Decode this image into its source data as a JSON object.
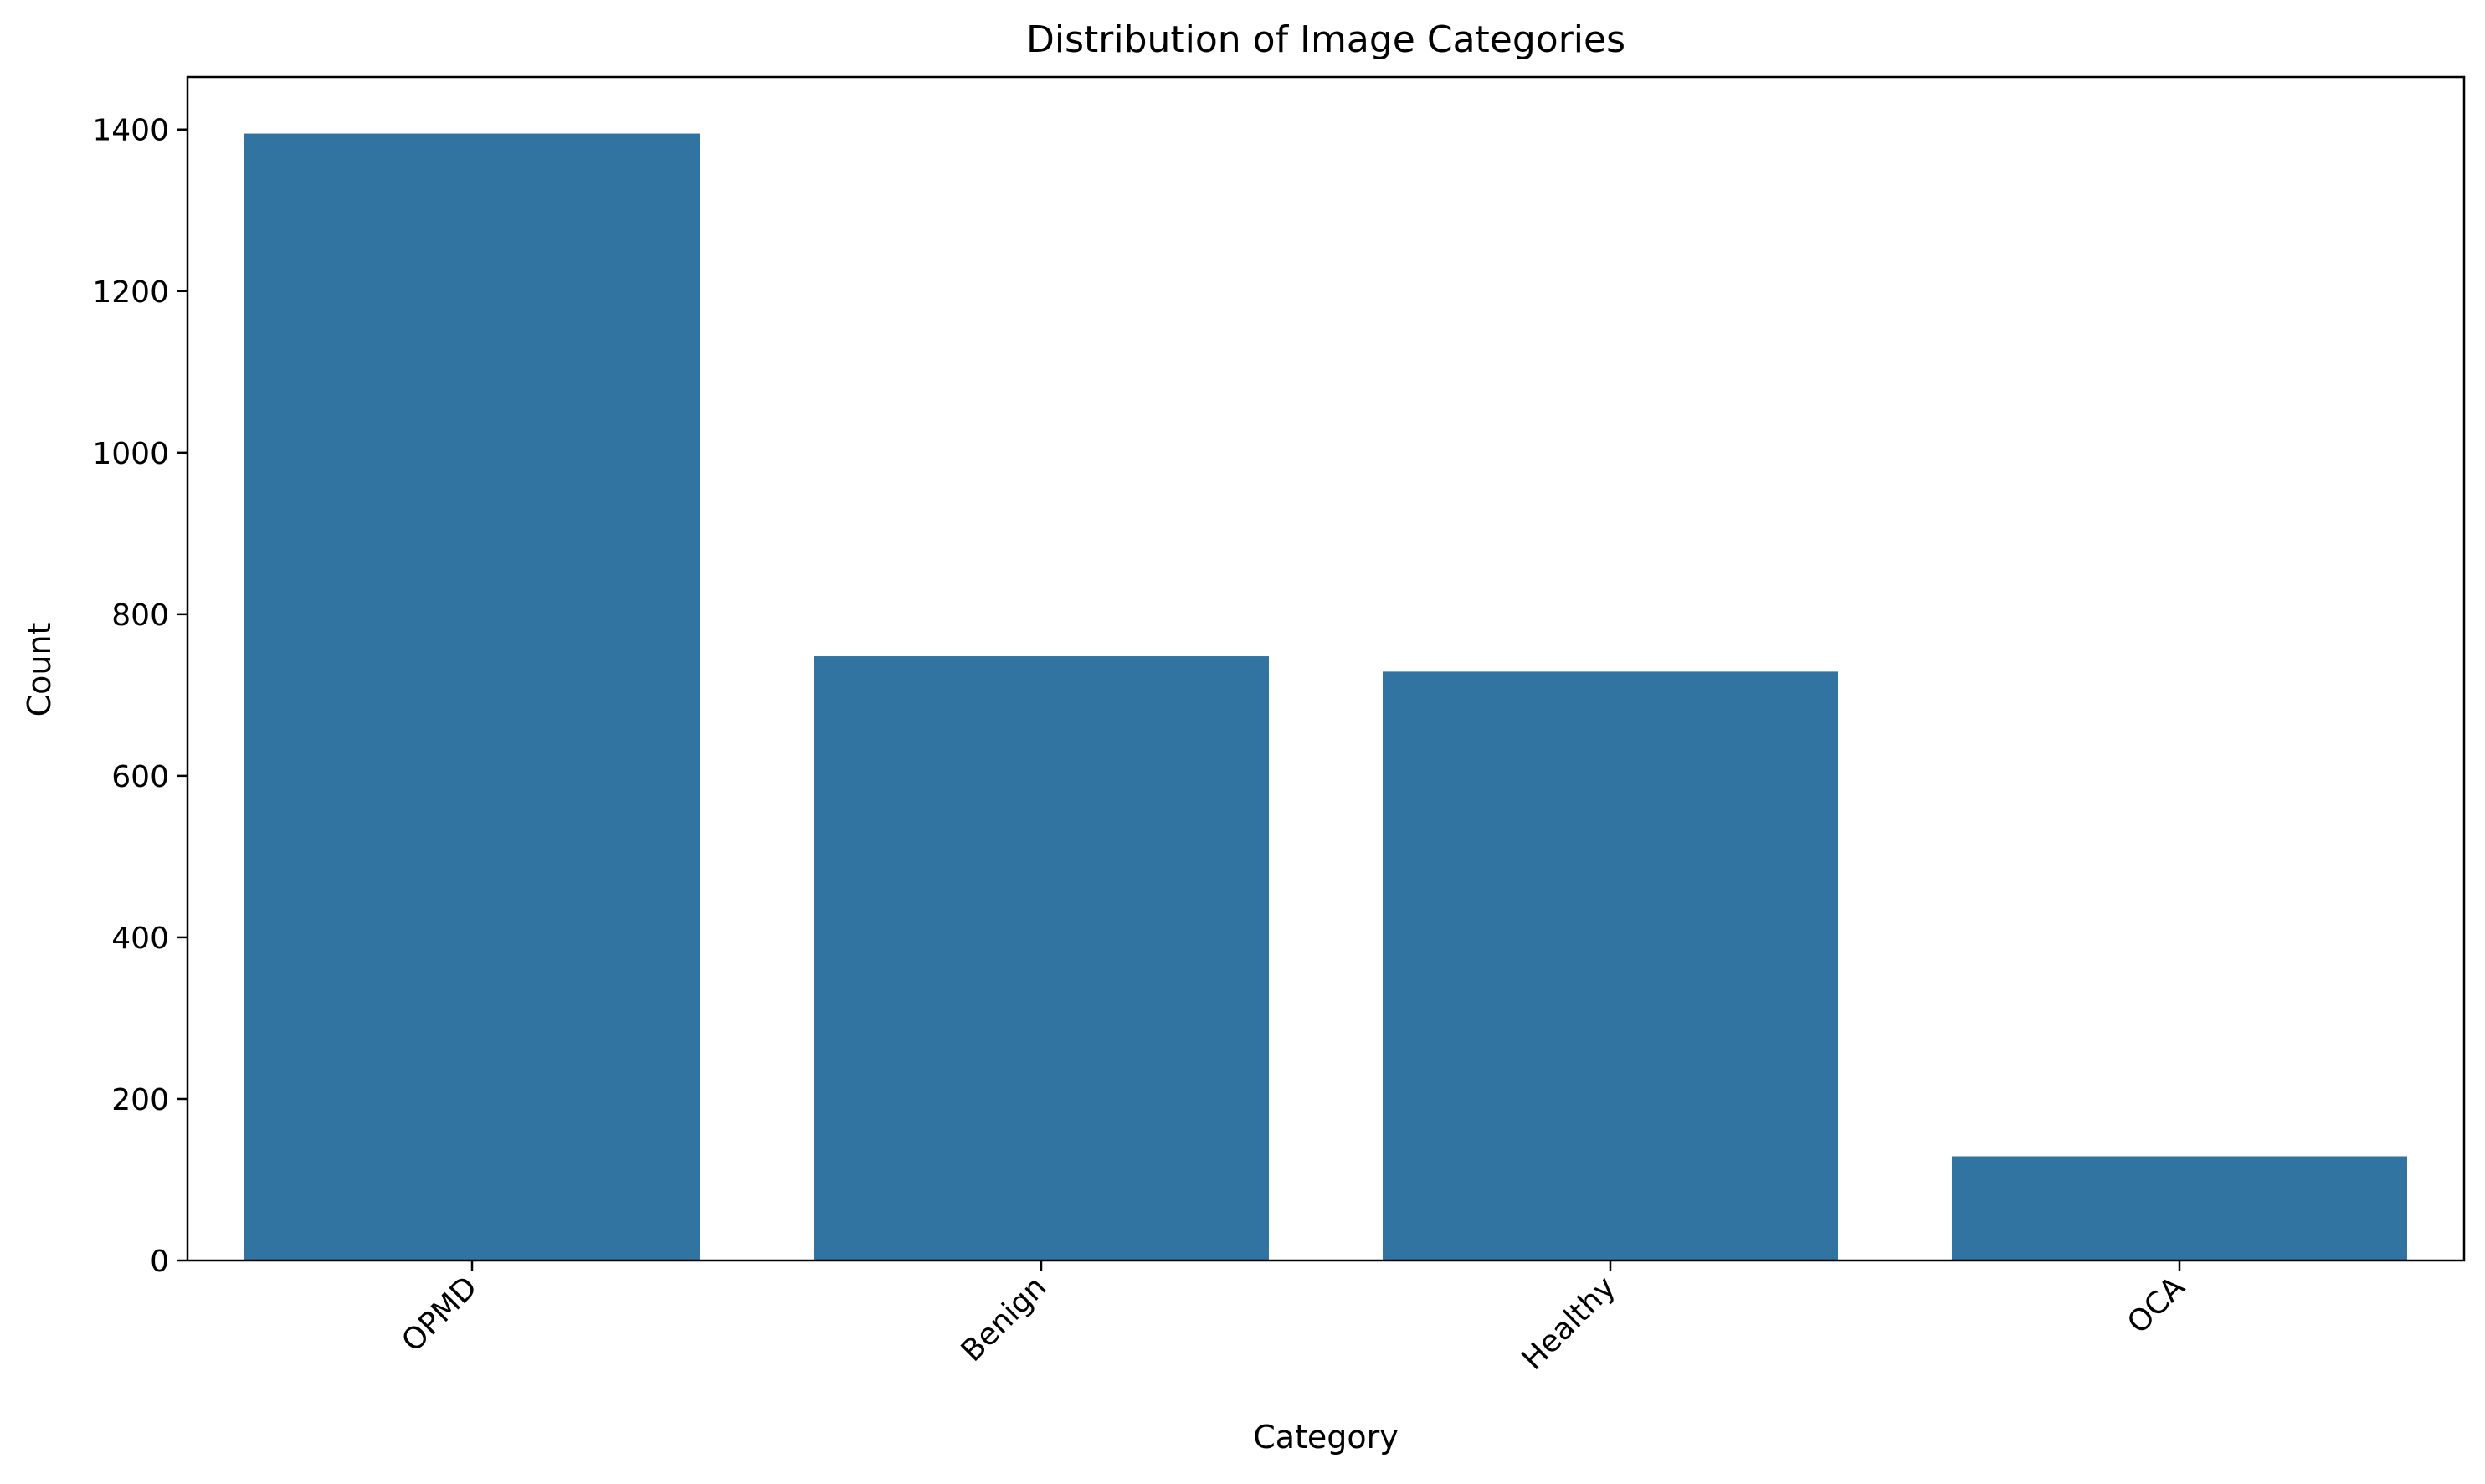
{
  "chart_data": {
    "type": "bar",
    "title": "Distribution of Image Categories",
    "xlabel": "Category",
    "ylabel": "Count",
    "categories": [
      "OPMD",
      "Benign",
      "Healthy",
      "OCA"
    ],
    "values": [
      1395,
      748,
      729,
      129
    ],
    "ylim": [
      0,
      1465
    ],
    "yticks": [
      0,
      200,
      400,
      600,
      800,
      1000,
      1200,
      1400
    ],
    "bar_color": "#3274a1",
    "grid": false,
    "legend": false,
    "xtick_rotation": "45deg"
  }
}
